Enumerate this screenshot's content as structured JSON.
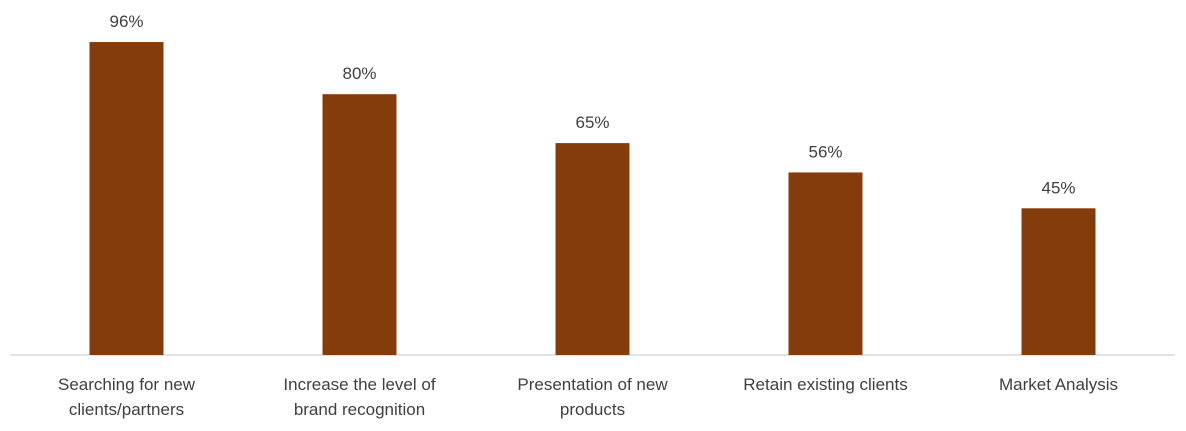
{
  "chart_data": {
    "type": "bar",
    "categories": [
      "Searching for new\nclients/partners",
      "Increase the level of\nbrand recognition",
      "Presentation of new\nproducts",
      "Retain existing clients",
      "Market Analysis"
    ],
    "values": [
      96,
      80,
      65,
      56,
      45
    ],
    "data_labels": [
      "96%",
      "80%",
      "65%",
      "56%",
      "45%"
    ],
    "title": "",
    "xlabel": "",
    "ylabel": "",
    "ylim": [
      0,
      100
    ],
    "grid": false,
    "legend": "none",
    "bar_color": "#843C0C",
    "axis_color": "#D9D9D9",
    "label_color": "#404040"
  }
}
